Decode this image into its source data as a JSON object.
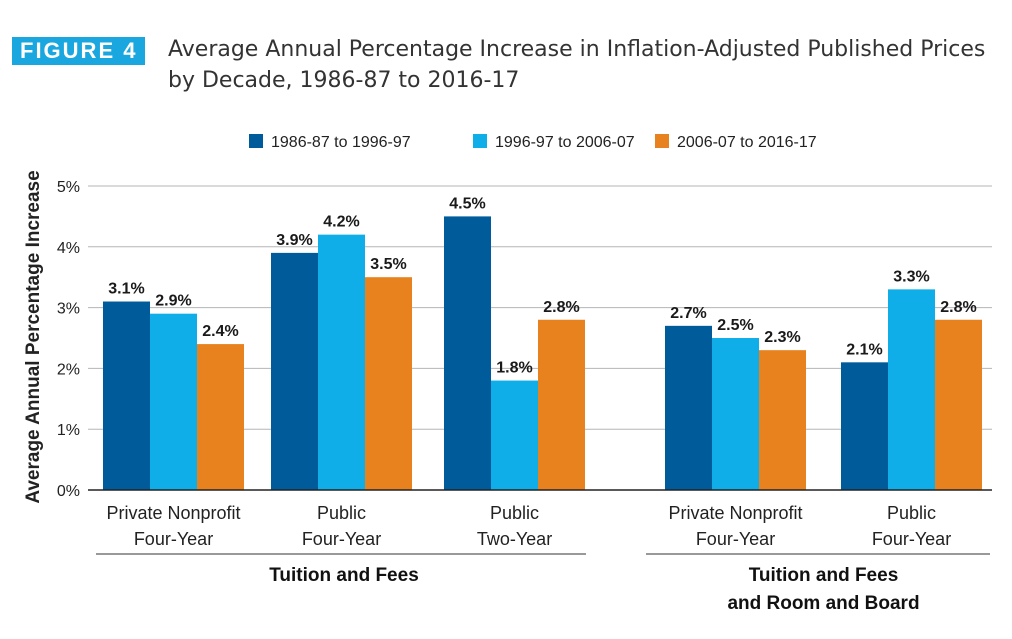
{
  "figure": {
    "label": "FIGURE 4",
    "title": "Average Annual Percentage Increase in Inflation-Adjusted Published Prices by Decade, 1986-87 to 2016-17"
  },
  "chart_data": {
    "type": "bar",
    "title": "Average Annual Percentage Increase in Inflation-Adjusted Published Prices by Decade, 1986-87 to 2016-17",
    "ylabel": "Average Annual Percentage Increase",
    "xlabel": "",
    "ylim": [
      0,
      5
    ],
    "yticks": [
      "0%",
      "1%",
      "2%",
      "3%",
      "4%",
      "5%"
    ],
    "grid": true,
    "legend_position": "top",
    "categories": [
      {
        "line1": "Private Nonprofit",
        "line2": "Four-Year"
      },
      {
        "line1": "Public",
        "line2": "Four-Year"
      },
      {
        "line1": "Public",
        "line2": "Two-Year"
      },
      {
        "line1": "Private Nonprofit",
        "line2": "Four-Year"
      },
      {
        "line1": "Public",
        "line2": "Four-Year"
      }
    ],
    "groups": [
      {
        "lines": [
          "Tuition and Fees"
        ],
        "categories": [
          0,
          1,
          2
        ]
      },
      {
        "lines": [
          "Tuition and Fees",
          "and Room and Board"
        ],
        "categories": [
          3,
          4
        ]
      }
    ],
    "series": [
      {
        "name": "1986-87 to 1996-97",
        "color": "#005b9a",
        "values": [
          3.1,
          3.9,
          4.5,
          2.7,
          2.1
        ],
        "labels": [
          "3.1%",
          "3.9%",
          "4.5%",
          "2.7%",
          "2.1%"
        ]
      },
      {
        "name": "1996-97 to 2006-07",
        "color": "#0faee9",
        "values": [
          2.9,
          4.2,
          1.8,
          2.5,
          3.3
        ],
        "labels": [
          "2.9%",
          "4.2%",
          "1.8%",
          "2.5%",
          "3.3%"
        ]
      },
      {
        "name": "2006-07 to 2016-17",
        "color": "#e8821e",
        "values": [
          2.4,
          3.5,
          2.8,
          2.3,
          2.8
        ],
        "labels": [
          "2.4%",
          "3.5%",
          "2.8%",
          "2.3%",
          "2.8%"
        ]
      }
    ]
  }
}
